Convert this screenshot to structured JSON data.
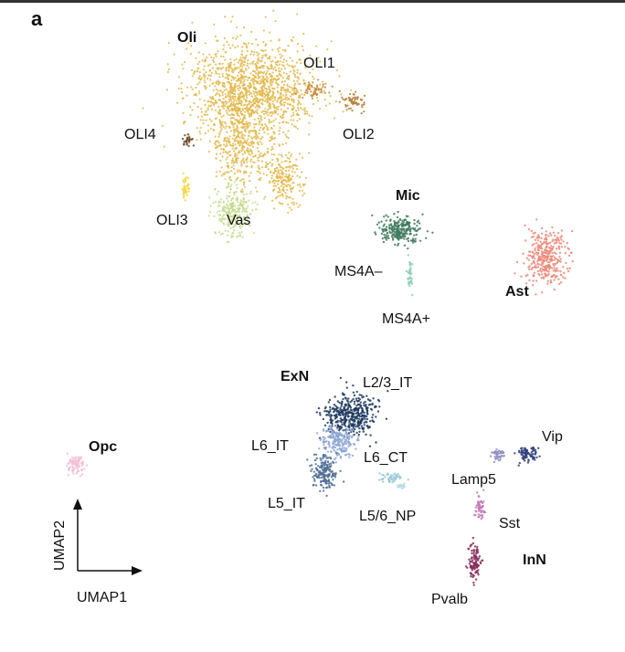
{
  "panel_label": "a",
  "chart_data": {
    "type": "scatter",
    "title": "",
    "xlabel": "UMAP1",
    "ylabel": "UMAP2",
    "grid": false,
    "legend": "none",
    "groups": [
      {
        "label": "Oli",
        "major": true
      },
      {
        "label": "Mic",
        "major": true
      },
      {
        "label": "Ast",
        "major": true
      },
      {
        "label": "ExN",
        "major": true
      },
      {
        "label": "Opc",
        "major": true
      },
      {
        "label": "InN",
        "major": true
      }
    ],
    "clusters": [
      {
        "label": "OLI1",
        "color": "#c8893a"
      },
      {
        "label": "OLI2",
        "color": "#b87a30"
      },
      {
        "label": "OLI3",
        "color": "#f2d94a"
      },
      {
        "label": "OLI4",
        "color": "#6b4a2a"
      },
      {
        "label": "Vas",
        "color": "#c6db8e"
      },
      {
        "label": "MS4A–",
        "color": "#3f7a5e"
      },
      {
        "label": "MS4A+",
        "color": "#8fcfb8"
      },
      {
        "label": "L2/3_IT",
        "color": "#1f3a5f"
      },
      {
        "label": "L6_IT",
        "color": "#8fa8d4"
      },
      {
        "label": "L6_CT",
        "color": "#9ec9d8"
      },
      {
        "label": "L5_IT",
        "color": "#4f6f94"
      },
      {
        "label": "L5/6_NP",
        "color": "#b5dbe6"
      },
      {
        "label": "Vip",
        "color": "#2f3e7a"
      },
      {
        "label": "Lamp5",
        "color": "#8e8fc2"
      },
      {
        "label": "Sst",
        "color": "#c27ab8"
      },
      {
        "label": "Pvalb",
        "color": "#8a2e5c"
      }
    ],
    "group_colors": {
      "Oli": "#e3b84a",
      "Ast": "#ec8a7a",
      "Opc": "#f3c0d6"
    }
  }
}
